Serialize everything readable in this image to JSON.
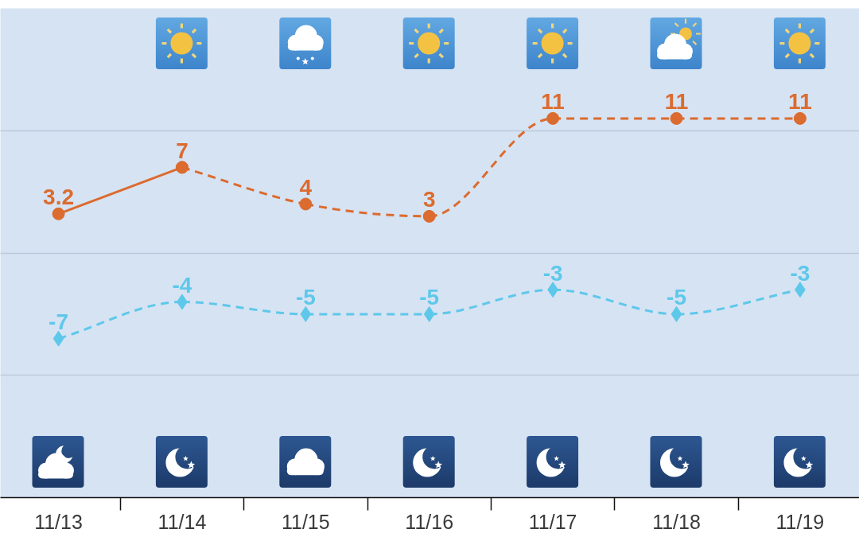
{
  "chart_data": {
    "type": "line",
    "categories": [
      "11/13",
      "11/14",
      "11/15",
      "11/16",
      "11/17",
      "11/18",
      "11/19"
    ],
    "series": [
      {
        "color": "#dc6b2f",
        "values": [
          3.2,
          7,
          null,
          null,
          null,
          null,
          null
        ],
        "line_style": "solid",
        "marker": "circle",
        "value_labels": [
          "3.2",
          null,
          null,
          null,
          null,
          null,
          null
        ]
      },
      {
        "color": "#dc6b2f",
        "values": [
          null,
          7,
          4,
          3,
          11,
          11,
          11
        ],
        "line_style": "dashed",
        "marker": "circle",
        "value_labels": [
          null,
          "7",
          "4",
          "3",
          "11",
          "11",
          "11"
        ]
      },
      {
        "color": "#5ec8ea",
        "values": [
          -7,
          -4,
          -5,
          -5,
          -3,
          -5,
          -3
        ],
        "line_style": "dashed",
        "marker": "diamond",
        "value_labels": [
          "-7",
          "-4",
          "-5",
          "-5",
          "-3",
          "-5",
          "-3"
        ]
      }
    ],
    "ylim": [
      -20,
      20
    ],
    "yticks": [
      -20,
      -10,
      0,
      10,
      20
    ],
    "grid": "y",
    "tick_labels": "x"
  }
}
